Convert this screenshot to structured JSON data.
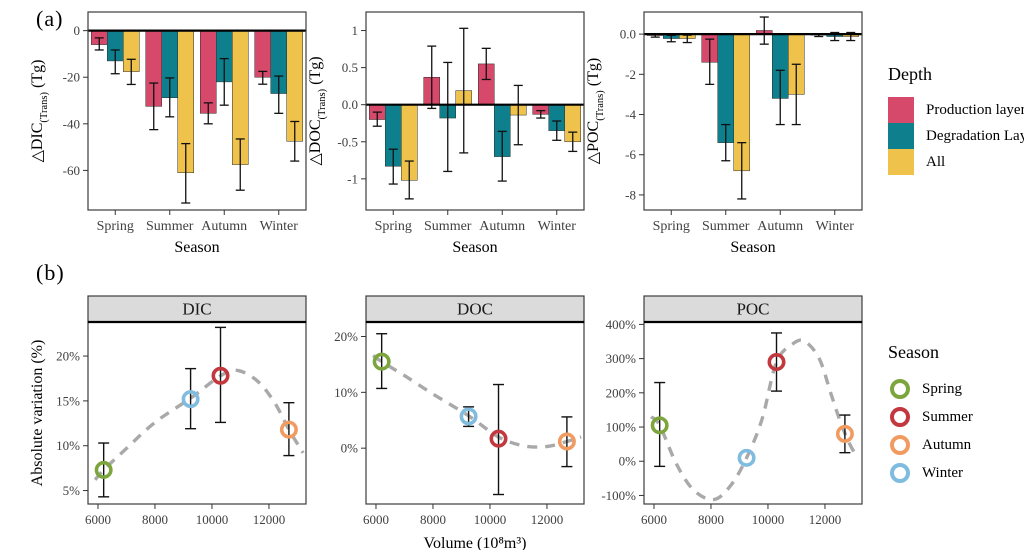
{
  "figure": {
    "a_label": "(a)",
    "b_label": "(b)"
  },
  "colors": {
    "panel_border": "#3c3c3c",
    "zero_line": "#000000",
    "error_bar": "#111111",
    "trend_line": "#a9a9a9",
    "header_fill": "#dbdbdb",
    "tick_text": "#404040"
  },
  "legend_depth": {
    "title": "Depth",
    "items": [
      {
        "label": "Production layer",
        "color": "#d6496a"
      },
      {
        "label": "Degradation Layer",
        "color": "#0e7f8c"
      },
      {
        "label": "All",
        "color": "#efc24b"
      }
    ]
  },
  "legend_season": {
    "title": "Season",
    "items": [
      {
        "label": "Spring",
        "color": "#7ca63d"
      },
      {
        "label": "Summer",
        "color": "#c2383e"
      },
      {
        "label": "Autumn",
        "color": "#f19b61"
      },
      {
        "label": "Winter",
        "color": "#7fbce0"
      }
    ]
  },
  "chart_data": [
    {
      "type": "bar",
      "panel": "a-DIC",
      "ylabel": {
        "prefix": "△DIC",
        "sub": "(Trans)",
        "suffix": " (Tg)"
      },
      "xlabel": "Season",
      "categories": [
        "Spring",
        "Summer",
        "Autumn",
        "Winter"
      ],
      "yticks": [
        0,
        -20,
        -40,
        -60
      ],
      "ytick_labels": [
        "0",
        "-20",
        "-40",
        "-60"
      ],
      "ylim": [
        -77,
        8
      ],
      "series": [
        {
          "name": "Production layer",
          "color": "#d6496a",
          "values": [
            -6,
            -32.5,
            -35.5,
            -20
          ],
          "err_low": [
            -8.3,
            -42.5,
            -40,
            -23
          ],
          "err_high": [
            -3.1,
            -22.5,
            -31,
            -17.5
          ]
        },
        {
          "name": "Degradation Layer",
          "color": "#0e7f8c",
          "values": [
            -13,
            -28.8,
            -22,
            -27
          ],
          "err_low": [
            -18.5,
            -37,
            -32,
            -35.5
          ],
          "err_high": [
            -8.3,
            -20.3,
            -12,
            -19.5
          ]
        },
        {
          "name": "All",
          "color": "#efc24b",
          "values": [
            -17.6,
            -61,
            -57.5,
            -47.5
          ],
          "err_low": [
            -23.1,
            -74,
            -68.5,
            -56
          ],
          "err_high": [
            -12.3,
            -48.5,
            -46.5,
            -39
          ]
        }
      ]
    },
    {
      "type": "bar",
      "panel": "a-DOC",
      "ylabel": {
        "prefix": "△DOC",
        "sub": "(Trans)",
        "suffix": " (Tg)"
      },
      "xlabel": "Season",
      "categories": [
        "Spring",
        "Summer",
        "Autumn",
        "Winter"
      ],
      "yticks": [
        1,
        0.5,
        0,
        -0.5,
        -1
      ],
      "ytick_labels": [
        "1",
        "0.5",
        "0.0",
        "-0.5",
        "-1"
      ],
      "ylim": [
        -1.42,
        1.25
      ],
      "series": [
        {
          "name": "Production layer",
          "color": "#d6496a",
          "values": [
            -0.2,
            0.37,
            0.55,
            -0.13
          ],
          "err_low": [
            -0.29,
            -0.05,
            0.34,
            -0.18
          ],
          "err_high": [
            -0.1,
            0.79,
            0.76,
            -0.08
          ]
        },
        {
          "name": "Degradation Layer",
          "color": "#0e7f8c",
          "values": [
            -0.83,
            -0.18,
            -0.7,
            -0.35
          ],
          "err_low": [
            -1.07,
            -0.9,
            -1.03,
            -0.48
          ],
          "err_high": [
            -0.6,
            0.57,
            -0.36,
            -0.22
          ]
        },
        {
          "name": "All",
          "color": "#efc24b",
          "values": [
            -1.02,
            0.19,
            -0.14,
            -0.5
          ],
          "err_low": [
            -1.27,
            -0.65,
            -0.54,
            -0.63
          ],
          "err_high": [
            -0.76,
            1.03,
            0.26,
            -0.37
          ]
        }
      ]
    },
    {
      "type": "bar",
      "panel": "a-POC",
      "ylabel": {
        "prefix": "△POC",
        "sub": "(Trans)",
        "suffix": " (Tg)"
      },
      "xlabel": "Season",
      "categories": [
        "Spring",
        "Summer",
        "Autumn",
        "Winter"
      ],
      "yticks": [
        0,
        -2,
        -4,
        -6,
        -8
      ],
      "ytick_labels": [
        "0.0",
        "-2",
        "-4",
        "-6",
        "-8"
      ],
      "ylim": [
        -8.75,
        1.1
      ],
      "series": [
        {
          "name": "Production layer",
          "color": "#d6496a",
          "values": [
            -0.07,
            -1.4,
            0.18,
            -0.05
          ],
          "err_low": [
            -0.15,
            -2.5,
            -0.5,
            -0.12
          ],
          "err_high": [
            -0.02,
            -0.25,
            0.85,
            0.02
          ]
        },
        {
          "name": "Degradation Layer",
          "color": "#0e7f8c",
          "values": [
            -0.22,
            -5.4,
            -3.2,
            -0.12
          ],
          "err_low": [
            -0.38,
            -6.3,
            -4.5,
            -0.32
          ],
          "err_high": [
            -0.06,
            -4.5,
            -1.8,
            0.08
          ]
        },
        {
          "name": "All",
          "color": "#efc24b",
          "values": [
            -0.22,
            -6.8,
            -3.0,
            -0.12
          ],
          "err_low": [
            -0.42,
            -8.2,
            -4.5,
            -0.32
          ],
          "err_high": [
            -0.05,
            -5.4,
            -1.5,
            0.08
          ]
        }
      ]
    },
    {
      "type": "scatter",
      "panel": "b-DIC",
      "title": "DIC",
      "ylabel": "Absolute variation (%)",
      "show_ylabel": true,
      "xlabel": "",
      "xlim": [
        5650,
        13300
      ],
      "xticks": [
        6000,
        8000,
        10000,
        12000
      ],
      "ylim": [
        3.5,
        23.8
      ],
      "yticks": [
        20,
        15,
        10,
        5
      ],
      "ytick_labels": [
        "20%",
        "15%",
        "10%",
        "5%"
      ],
      "points": [
        {
          "season": "Spring",
          "color": "#7ca63d",
          "x": 6200,
          "y": 7.3,
          "err": [
            4.3,
            10.3
          ]
        },
        {
          "season": "Summer",
          "color": "#c2383e",
          "x": 10300,
          "y": 17.8,
          "err": [
            12.6,
            23.2
          ]
        },
        {
          "season": "Autumn",
          "color": "#f19b61",
          "x": 12700,
          "y": 11.8,
          "err": [
            8.9,
            14.8
          ]
        },
        {
          "season": "Winter",
          "color": "#7fbce0",
          "x": 9250,
          "y": 15.2,
          "err": [
            11.9,
            18.6
          ]
        }
      ],
      "trend": [
        [
          5900,
          6.2
        ],
        [
          6200,
          7.3
        ],
        [
          7000,
          9.7
        ],
        [
          8000,
          12.6
        ],
        [
          9250,
          15.3
        ],
        [
          10300,
          17.8
        ],
        [
          10900,
          18.4
        ],
        [
          11600,
          17.2
        ],
        [
          12200,
          14.8
        ],
        [
          12700,
          11.8
        ],
        [
          13200,
          9.2
        ]
      ]
    },
    {
      "type": "scatter",
      "panel": "b-DOC",
      "title": "DOC",
      "ylabel": "",
      "show_ylabel": false,
      "xlabel": "Volume (10⁸m³)",
      "xlim": [
        5650,
        13300
      ],
      "xticks": [
        6000,
        8000,
        10000,
        12000
      ],
      "ylim": [
        -10,
        22.6
      ],
      "yticks": [
        20,
        10,
        0
      ],
      "ytick_labels": [
        "20%",
        "10%",
        "0%"
      ],
      "points": [
        {
          "season": "Spring",
          "color": "#7ca63d",
          "x": 6200,
          "y": 15.5,
          "err": [
            10.7,
            20.5
          ]
        },
        {
          "season": "Summer",
          "color": "#c2383e",
          "x": 10300,
          "y": 1.7,
          "err": [
            -8.3,
            11.4
          ]
        },
        {
          "season": "Autumn",
          "color": "#f19b61",
          "x": 12700,
          "y": 1.2,
          "err": [
            -3.3,
            5.6
          ]
        },
        {
          "season": "Winter",
          "color": "#7fbce0",
          "x": 9250,
          "y": 5.7,
          "err": [
            3.9,
            7.4
          ]
        }
      ],
      "trend": [
        [
          5900,
          16.6
        ],
        [
          6200,
          15.5
        ],
        [
          7000,
          13.0
        ],
        [
          8000,
          9.7
        ],
        [
          9250,
          5.8
        ],
        [
          10300,
          2.0
        ],
        [
          11200,
          0.4
        ],
        [
          12000,
          0.3
        ],
        [
          12700,
          1.2
        ],
        [
          13200,
          2.0
        ]
      ]
    },
    {
      "type": "scatter",
      "panel": "b-POC",
      "title": "POC",
      "ylabel": "",
      "show_ylabel": false,
      "xlabel": "",
      "xlim": [
        5650,
        13300
      ],
      "xticks": [
        6000,
        8000,
        10000,
        12000
      ],
      "ylim": [
        -125,
        407
      ],
      "yticks": [
        400,
        300,
        200,
        100,
        0,
        -100
      ],
      "ytick_labels": [
        "400%",
        "300%",
        "200%",
        "100%",
        "0%",
        "-100%"
      ],
      "points": [
        {
          "season": "Spring",
          "color": "#7ca63d",
          "x": 6200,
          "y": 105,
          "err": [
            -15,
            230
          ]
        },
        {
          "season": "Summer",
          "color": "#c2383e",
          "x": 10300,
          "y": 290,
          "err": [
            205,
            375
          ]
        },
        {
          "season": "Autumn",
          "color": "#f19b61",
          "x": 12700,
          "y": 80,
          "err": [
            25,
            135
          ]
        },
        {
          "season": "Winter",
          "color": "#7fbce0",
          "x": 9250,
          "y": 10,
          "err": null
        }
      ],
      "trend": [
        [
          5900,
          130
        ],
        [
          6200,
          105
        ],
        [
          6800,
          -10
        ],
        [
          7400,
          -85
        ],
        [
          8100,
          -112
        ],
        [
          8700,
          -70
        ],
        [
          9250,
          10
        ],
        [
          9800,
          125
        ],
        [
          10300,
          290
        ],
        [
          10900,
          345
        ],
        [
          11300,
          350
        ],
        [
          11800,
          300
        ],
        [
          12200,
          200
        ],
        [
          12500,
          125
        ],
        [
          12800,
          62
        ],
        [
          13100,
          15
        ]
      ]
    }
  ]
}
